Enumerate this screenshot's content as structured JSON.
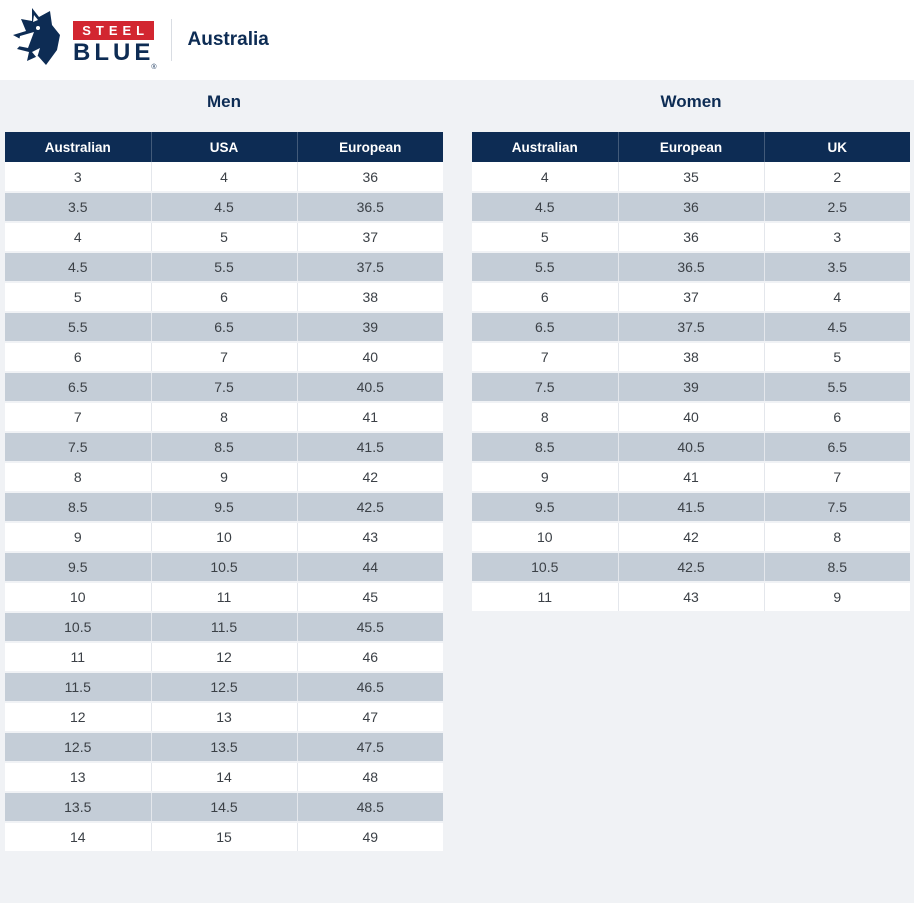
{
  "header": {
    "brand": {
      "steel": "STEEL",
      "blue": "BLUE",
      "trademark": "®"
    },
    "region": "Australia"
  },
  "colors": {
    "navy": "#0d2c54",
    "red": "#d22630",
    "page_bg": "#f0f2f5",
    "alt_row": "#c4cdd7",
    "cell_text": "#3b4046"
  },
  "tables": {
    "men": {
      "title": "Men",
      "columns": [
        "Australian",
        "USA",
        "European"
      ],
      "rows": [
        [
          "3",
          "4",
          "36"
        ],
        [
          "3.5",
          "4.5",
          "36.5"
        ],
        [
          "4",
          "5",
          "37"
        ],
        [
          "4.5",
          "5.5",
          "37.5"
        ],
        [
          "5",
          "6",
          "38"
        ],
        [
          "5.5",
          "6.5",
          "39"
        ],
        [
          "6",
          "7",
          "40"
        ],
        [
          "6.5",
          "7.5",
          "40.5"
        ],
        [
          "7",
          "8",
          "41"
        ],
        [
          "7.5",
          "8.5",
          "41.5"
        ],
        [
          "8",
          "9",
          "42"
        ],
        [
          "8.5",
          "9.5",
          "42.5"
        ],
        [
          "9",
          "10",
          "43"
        ],
        [
          "9.5",
          "10.5",
          "44"
        ],
        [
          "10",
          "11",
          "45"
        ],
        [
          "10.5",
          "11.5",
          "45.5"
        ],
        [
          "11",
          "12",
          "46"
        ],
        [
          "11.5",
          "12.5",
          "46.5"
        ],
        [
          "12",
          "13",
          "47"
        ],
        [
          "12.5",
          "13.5",
          "47.5"
        ],
        [
          "13",
          "14",
          "48"
        ],
        [
          "13.5",
          "14.5",
          "48.5"
        ],
        [
          "14",
          "15",
          "49"
        ]
      ]
    },
    "women": {
      "title": "Women",
      "columns": [
        "Australian",
        "European",
        "UK"
      ],
      "rows": [
        [
          "4",
          "35",
          "2"
        ],
        [
          "4.5",
          "36",
          "2.5"
        ],
        [
          "5",
          "36",
          "3"
        ],
        [
          "5.5",
          "36.5",
          "3.5"
        ],
        [
          "6",
          "37",
          "4"
        ],
        [
          "6.5",
          "37.5",
          "4.5"
        ],
        [
          "7",
          "38",
          "5"
        ],
        [
          "7.5",
          "39",
          "5.5"
        ],
        [
          "8",
          "40",
          "6"
        ],
        [
          "8.5",
          "40.5",
          "6.5"
        ],
        [
          "9",
          "41",
          "7"
        ],
        [
          "9.5",
          "41.5",
          "7.5"
        ],
        [
          "10",
          "42",
          "8"
        ],
        [
          "10.5",
          "42.5",
          "8.5"
        ],
        [
          "11",
          "43",
          "9"
        ]
      ]
    }
  }
}
